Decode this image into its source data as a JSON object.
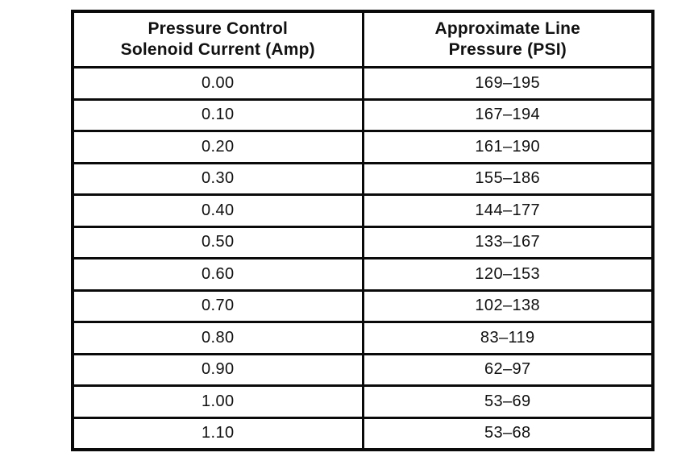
{
  "table": {
    "headers": [
      "Pressure Control\nSolenoid Current (Amp)",
      "Approximate Line\nPressure (PSI)"
    ],
    "rows": [
      {
        "current": "0.00",
        "pressure": "169–195"
      },
      {
        "current": "0.10",
        "pressure": "167–194"
      },
      {
        "current": "0.20",
        "pressure": "161–190"
      },
      {
        "current": "0.30",
        "pressure": "155–186"
      },
      {
        "current": "0.40",
        "pressure": "144–177"
      },
      {
        "current": "0.50",
        "pressure": "133–167"
      },
      {
        "current": "0.60",
        "pressure": "120–153"
      },
      {
        "current": "0.70",
        "pressure": "102–138"
      },
      {
        "current": "0.80",
        "pressure": "83–119"
      },
      {
        "current": "0.90",
        "pressure": "62–97"
      },
      {
        "current": "1.00",
        "pressure": "53–69"
      },
      {
        "current": "1.10",
        "pressure": "53–68"
      }
    ],
    "border_color": "#0a0a0a",
    "background_color": "#ffffff",
    "text_color": "#111111"
  }
}
